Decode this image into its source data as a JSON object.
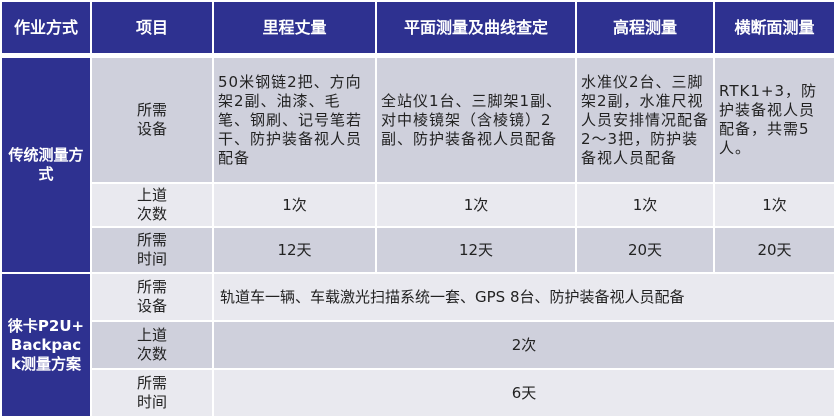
{
  "header": [
    "作业方式",
    "项目",
    "里程丈量",
    "平面测量及曲线查定",
    "高程测量",
    "横断面测量"
  ],
  "traditional": {
    "label": "传统测量方式",
    "rows": [
      {
        "item": "所需设备",
        "values": [
          "50米钢链2把、方向架2副、油漆、毛笔、钢刷、记号笔若干、防护装备视人员配备",
          "全站仪1台、三脚架1副、对中棱镜架（含棱镜）2副、防护装备视人员配备",
          "水准仪2台、三脚架2副，水准尺视人员安排情况配备2～3把，防护装备视人员配备",
          "RTK1+3，防护装备视人员配备，共需5人。"
        ]
      },
      {
        "item": "上道次数",
        "values": [
          "1次",
          "1次",
          "1次",
          "1次"
        ]
      },
      {
        "item": "所需时间",
        "values": [
          "12天",
          "12天",
          "20天",
          "20天"
        ]
      }
    ]
  },
  "leica": {
    "label": "徕卡P2U+Backpack测量方案",
    "rows": [
      {
        "item": "所需设备",
        "value": "轨道车一辆、车载激光扫描系统一套、GPS 8台、防护装备视人员配备"
      },
      {
        "item": "上道次数",
        "value": "2次"
      },
      {
        "item": "所需时间",
        "value": "6天"
      }
    ]
  },
  "colors": {
    "header": "#2e3190",
    "row_dark": "#cfd0dc",
    "row_light": "#e9e9ef"
  }
}
